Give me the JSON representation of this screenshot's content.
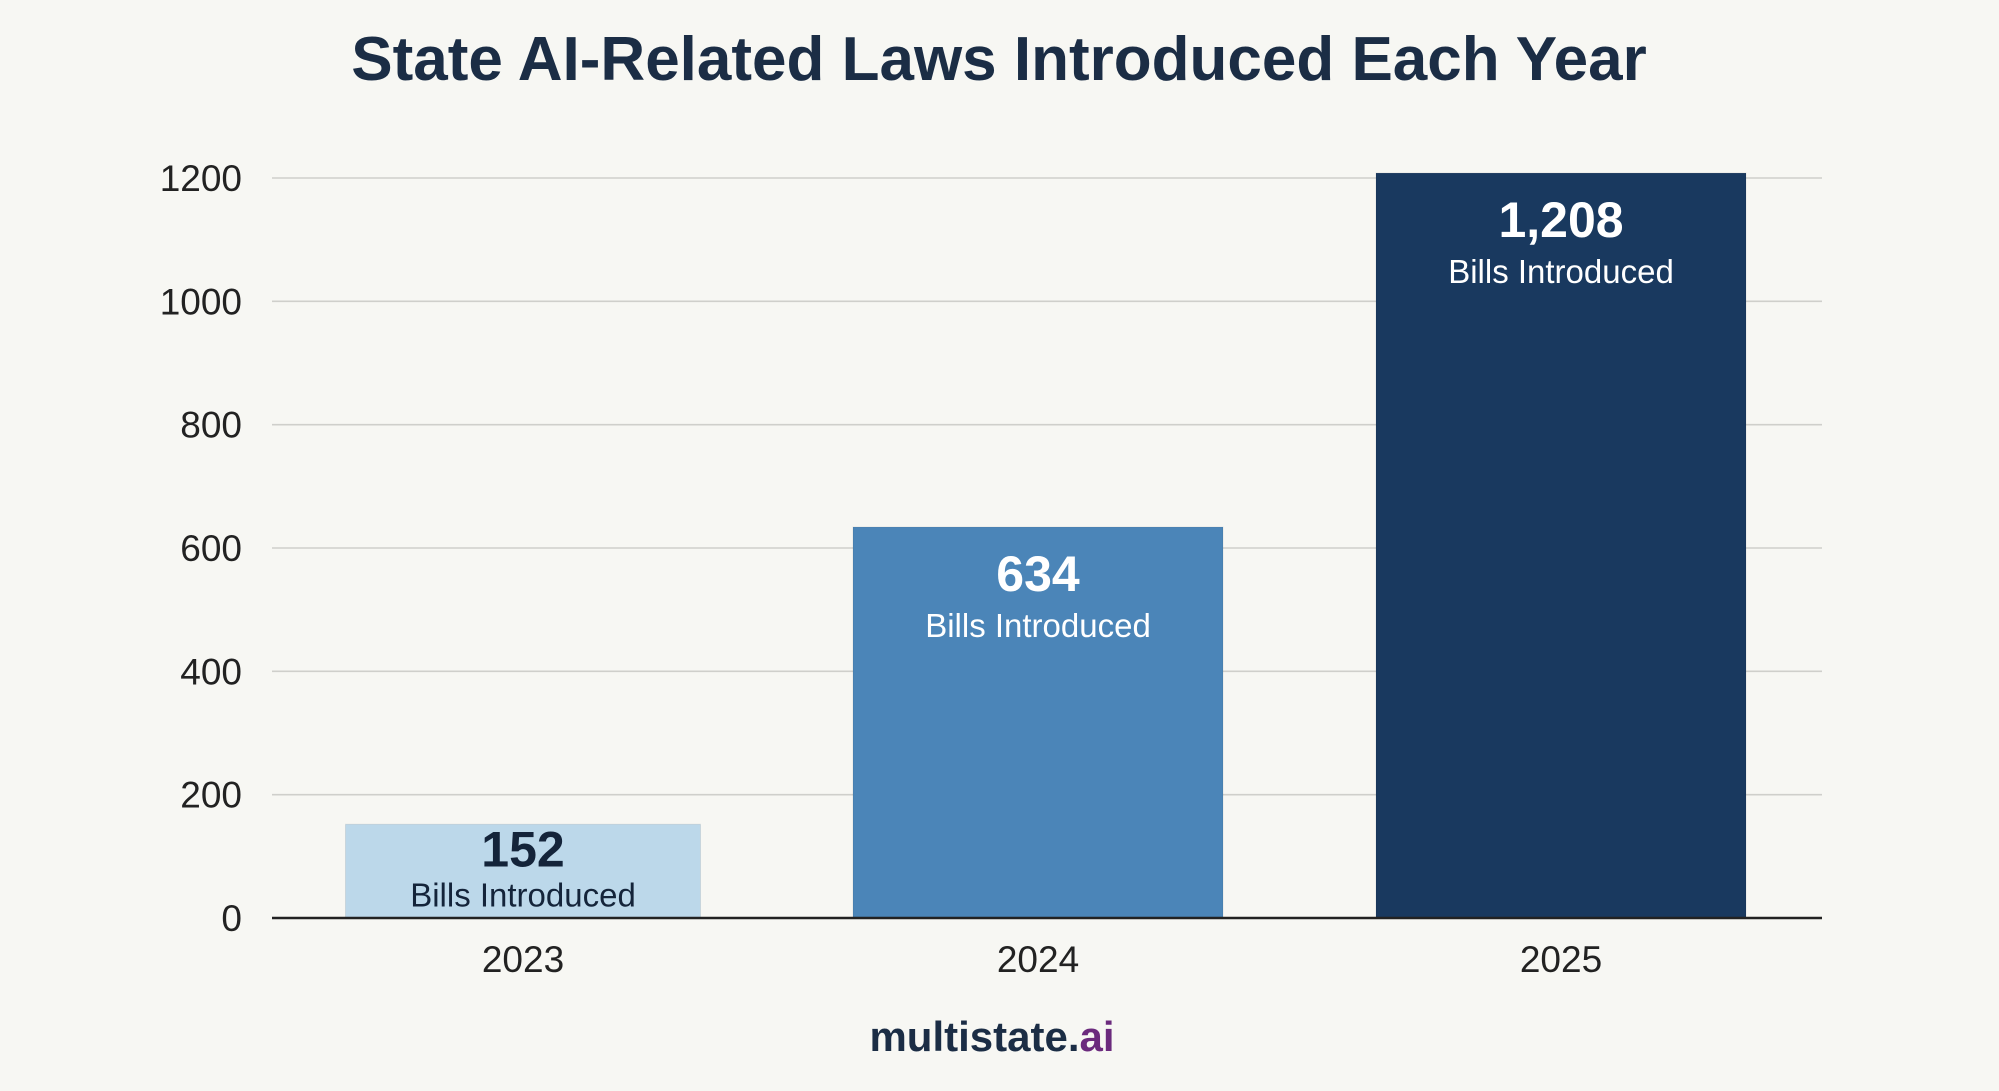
{
  "chart_data": {
    "type": "bar",
    "title": "State AI-Related Laws Introduced Each Year",
    "categories": [
      "2023",
      "2024",
      "2025"
    ],
    "values": [
      152,
      634,
      1208
    ],
    "value_labels": [
      "152",
      "634",
      "1,208"
    ],
    "bar_caption": "Bills Introduced",
    "bar_colors": [
      "#bcd8ea",
      "#4b85b8",
      "#19395f"
    ],
    "label_colors": [
      "#14243a",
      "#ffffff",
      "#ffffff"
    ],
    "ylim": [
      0,
      1200
    ],
    "yticks": [
      0,
      200,
      400,
      600,
      800,
      1000,
      1200
    ],
    "grid": true,
    "xlabel": "",
    "ylabel": ""
  },
  "footer": {
    "brand_main": "multistate.",
    "brand_suffix": "ai",
    "brand_main_color": "#1b2d45",
    "brand_suffix_color": "#6b2a7d"
  }
}
